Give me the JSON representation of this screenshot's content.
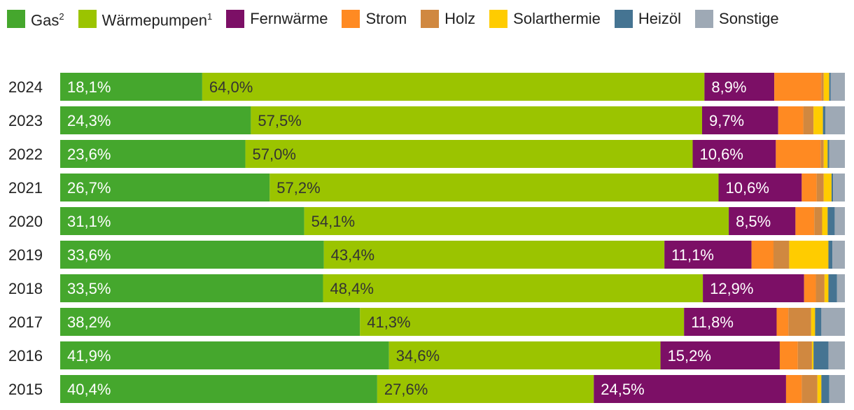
{
  "chart_data": {
    "type": "bar",
    "orientation": "horizontal",
    "stacked": true,
    "normalized_percent": true,
    "grid": false,
    "legend_position": "top",
    "categories": [
      "2024",
      "2023",
      "2022",
      "2021",
      "2020",
      "2019",
      "2018",
      "2017",
      "2016",
      "2015"
    ],
    "series": [
      {
        "name": "Gas",
        "superscript": "2",
        "color": "#45a72d",
        "values": [
          18.1,
          24.3,
          23.6,
          26.7,
          31.1,
          33.6,
          33.5,
          38.2,
          41.9,
          40.4
        ],
        "labels": [
          "18,1%",
          "24,3%",
          "23,6%",
          "26,7%",
          "31,1%",
          "33,6%",
          "33,5%",
          "38,2%",
          "41,9%",
          "40,4%"
        ]
      },
      {
        "name": "Wärmepumpen",
        "superscript": "1",
        "color": "#9bc400",
        "values": [
          64.0,
          57.5,
          57.0,
          57.2,
          54.1,
          43.4,
          48.4,
          41.3,
          34.6,
          27.6
        ],
        "labels": [
          "64,0%",
          "57,5%",
          "57,0%",
          "57,2%",
          "54,1%",
          "43,4%",
          "48,4%",
          "41,3%",
          "34,6%",
          "27,6%"
        ]
      },
      {
        "name": "Fernwärme",
        "superscript": "",
        "color": "#7c0f66",
        "values": [
          8.9,
          9.7,
          10.6,
          10.6,
          8.5,
          11.1,
          12.9,
          11.8,
          15.2,
          24.5
        ],
        "labels": [
          "8,9%",
          "9,7%",
          "10,6%",
          "10,6%",
          "8,5%",
          "11,1%",
          "12,9%",
          "11,8%",
          "15,2%",
          "24,5%"
        ]
      },
      {
        "name": "Strom",
        "superscript": "",
        "color": "#ff8a22",
        "values": [
          6.0,
          3.2,
          5.7,
          1.9,
          2.4,
          2.8,
          1.5,
          1.5,
          2.3,
          2.0
        ]
      },
      {
        "name": "Holz",
        "superscript": "",
        "color": "#d08840",
        "values": [
          0.3,
          1.3,
          0.4,
          0.9,
          1.0,
          2.0,
          1.1,
          2.9,
          1.8,
          2.0
        ]
      },
      {
        "name": "Solarthermie",
        "superscript": "",
        "color": "#ffcc00",
        "values": [
          0.7,
          1.2,
          0.5,
          1.0,
          0.7,
          5.0,
          0.5,
          0.5,
          0.2,
          0.5
        ]
      },
      {
        "name": "Heizöl",
        "superscript": "",
        "color": "#457492",
        "values": [
          0.2,
          0.3,
          0.2,
          0.2,
          0.9,
          0.5,
          1.1,
          0.8,
          1.9,
          1.0
        ]
      },
      {
        "name": "Sonstige",
        "superscript": "",
        "color": "#9ea9b5",
        "values": [
          1.8,
          2.5,
          2.0,
          1.5,
          1.3,
          1.6,
          1.0,
          3.0,
          2.1,
          2.0
        ]
      }
    ]
  }
}
